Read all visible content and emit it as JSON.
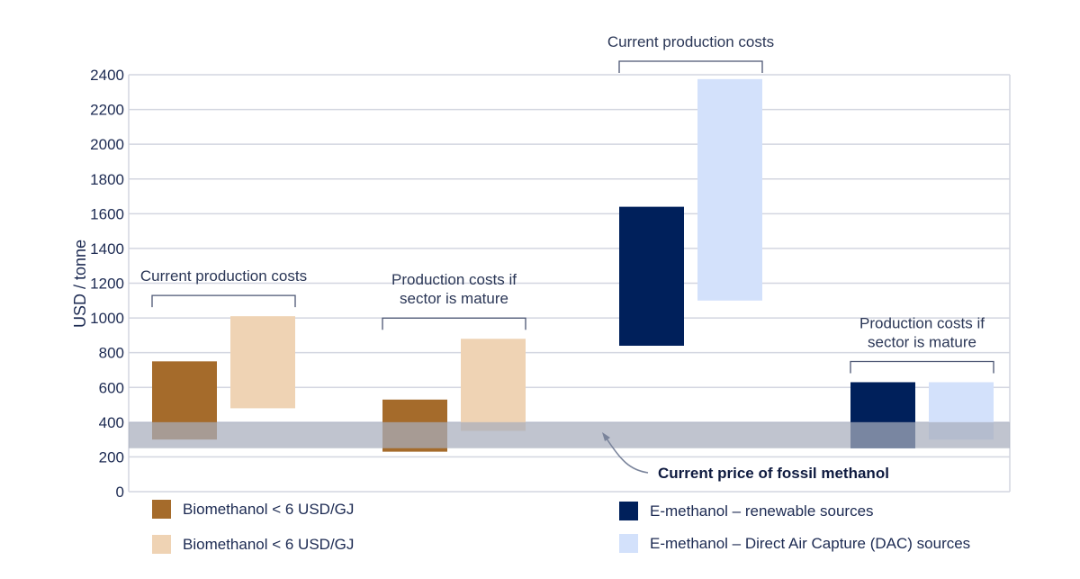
{
  "chart_data": {
    "type": "bar",
    "subtype": "floating-range",
    "title": "",
    "xlabel": "",
    "ylabel": "USD / tonne",
    "ylim": [
      0,
      2400
    ],
    "yticks": [
      0,
      200,
      400,
      600,
      800,
      1000,
      1200,
      1400,
      1600,
      1800,
      2000,
      2200,
      2400
    ],
    "grid": true,
    "groups": [
      {
        "annotation": [
          "Current production costs"
        ],
        "bars": [
          {
            "series": "Biomethanol < 6 USD/GJ (dark)",
            "low": 300,
            "high": 750
          },
          {
            "series": "Biomethanol < 6 USD/GJ (light)",
            "low": 480,
            "high": 1010
          }
        ]
      },
      {
        "annotation": [
          "Production costs if",
          "sector is mature"
        ],
        "bars": [
          {
            "series": "Biomethanol < 6 USD/GJ (dark)",
            "low": 230,
            "high": 530
          },
          {
            "series": "Biomethanol < 6 USD/GJ (light)",
            "low": 350,
            "high": 880
          }
        ]
      },
      {
        "annotation": [
          "Current production costs"
        ],
        "bars": [
          {
            "series": "E-methanol – renewable sources",
            "low": 840,
            "high": 1640
          },
          {
            "series": "E-methanol – Direct Air Capture (DAC) sources",
            "low": 1100,
            "high": 2375
          }
        ]
      },
      {
        "annotation": [
          "Production costs if",
          "sector is mature"
        ],
        "bars": [
          {
            "series": "E-methanol – renewable sources",
            "low": 250,
            "high": 630
          },
          {
            "series": "E-methanol – Direct Air Capture (DAC) sources",
            "low": 300,
            "high": 630
          }
        ]
      }
    ],
    "reference_band": {
      "label": "Current price of fossil methanol",
      "low": 250,
      "high": 400,
      "color": "#a7adbd"
    },
    "legend": [
      {
        "label": "Biomethanol < 6 USD/GJ",
        "color": "#a56b2b"
      },
      {
        "label": "Biomethanol < 6 USD/GJ",
        "color": "#efd3b4"
      },
      {
        "label": "E-methanol – renewable sources",
        "color": "#00205b"
      },
      {
        "label": "E-methanol – Direct Air Capture (DAC) sources",
        "color": "#d3e1fb"
      }
    ],
    "legend_position": "bottom"
  }
}
